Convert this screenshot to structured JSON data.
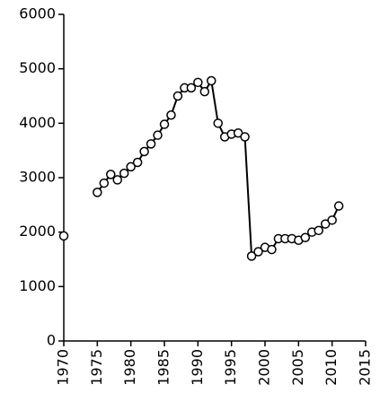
{
  "chart_data": {
    "type": "line",
    "x": [
      1970,
      1971,
      1972,
      1973,
      1974,
      1975,
      1976,
      1977,
      1978,
      1979,
      1980,
      1981,
      1982,
      1983,
      1984,
      1985,
      1986,
      1987,
      1988,
      1989,
      1990,
      1991,
      1992,
      1993,
      1994,
      1995,
      1996,
      1997,
      1998,
      1999,
      2000,
      2001,
      2002,
      2003,
      2004,
      2005,
      2006,
      2007,
      2008,
      2009,
      2010,
      2011
    ],
    "series": [
      {
        "color": "#000000",
        "values": [
          1930,
          null,
          null,
          null,
          null,
          2730,
          2900,
          3060,
          2960,
          3080,
          3200,
          3280,
          3480,
          3620,
          3780,
          3980,
          4150,
          4500,
          4650,
          4650,
          4750,
          4580,
          4780,
          4000,
          3750,
          3800,
          3820,
          3750,
          1560,
          1640,
          1720,
          1680,
          1880,
          1880,
          1880,
          1850,
          1900,
          2000,
          2030,
          2150,
          2220,
          2480
        ]
      }
    ],
    "xlim": [
      1970,
      2015
    ],
    "xticks": [
      1970,
      1975,
      1980,
      1985,
      1990,
      1995,
      2000,
      2005,
      2010,
      2015
    ],
    "ylim": [
      0,
      6000
    ],
    "yticks": [
      0,
      1000,
      2000,
      3000,
      4000,
      5000,
      6000
    ],
    "grid": false
  }
}
